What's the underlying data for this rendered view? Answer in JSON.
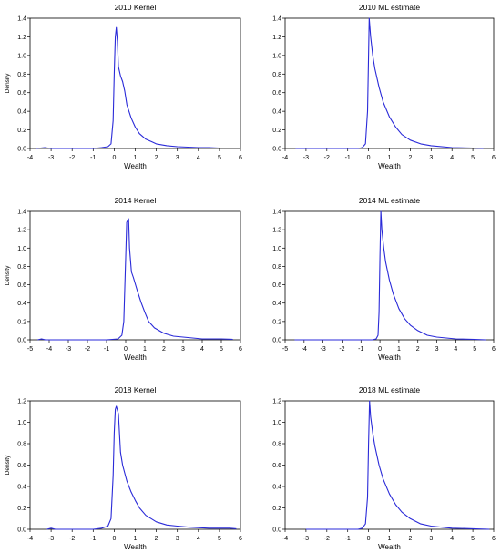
{
  "chart_data": [
    {
      "type": "line",
      "title": "2010 Kernel",
      "xlabel": "Wealth",
      "ylabel": "Density",
      "xlim": [
        -4,
        6
      ],
      "ylim": [
        0,
        1.4
      ],
      "xticks": [
        "-4",
        "-3",
        "-2",
        "-1",
        "0",
        "1",
        "2",
        "3",
        "4",
        "5",
        "6"
      ],
      "yticks": [
        "0.0",
        "0.2",
        "0.4",
        "0.6",
        "0.8",
        "1.0",
        "1.2",
        "1.4"
      ],
      "grid": false,
      "series": [
        {
          "color": "#2a2ad8",
          "x": [
            -3.7,
            -3.3,
            -3.0,
            -2.7,
            -2.0,
            -1.0,
            -0.6,
            -0.3,
            -0.15,
            -0.05,
            0.0,
            0.05,
            0.1,
            0.15,
            0.2,
            0.3,
            0.4,
            0.5,
            0.6,
            0.8,
            1.0,
            1.2,
            1.5,
            1.8,
            2.0,
            2.5,
            3.0,
            3.5,
            4.0,
            4.5,
            5.0,
            5.4
          ],
          "y": [
            0.0,
            0.01,
            0.0,
            0.0,
            0.0,
            0.0,
            0.01,
            0.02,
            0.05,
            0.3,
            0.8,
            1.2,
            1.3,
            1.15,
            0.88,
            0.78,
            0.72,
            0.62,
            0.47,
            0.33,
            0.23,
            0.16,
            0.1,
            0.07,
            0.05,
            0.03,
            0.02,
            0.015,
            0.01,
            0.01,
            0.005,
            0.005
          ]
        }
      ]
    },
    {
      "type": "line",
      "title": "2010 ML estimate",
      "xlabel": "Wealth",
      "ylabel": "",
      "xlim": [
        -4,
        6
      ],
      "ylim": [
        0,
        1.4
      ],
      "xticks": [
        "-4",
        "-3",
        "-2",
        "-1",
        "0",
        "1",
        "2",
        "3",
        "4",
        "5",
        "6"
      ],
      "yticks": [
        "0.0",
        "0.2",
        "0.4",
        "0.6",
        "0.8",
        "1.0",
        "1.2",
        "1.4"
      ],
      "grid": false,
      "series": [
        {
          "color": "#2a2ad8",
          "x": [
            -3.5,
            -1.0,
            -0.5,
            -0.3,
            -0.15,
            -0.05,
            0.0,
            0.03,
            0.1,
            0.2,
            0.3,
            0.5,
            0.7,
            1.0,
            1.3,
            1.6,
            2.0,
            2.5,
            3.0,
            4.0,
            5.0,
            5.5
          ],
          "y": [
            0.0,
            0.0,
            0.0,
            0.01,
            0.05,
            0.4,
            1.0,
            1.4,
            1.2,
            1.0,
            0.86,
            0.66,
            0.5,
            0.34,
            0.23,
            0.15,
            0.09,
            0.05,
            0.03,
            0.01,
            0.005,
            0.0
          ]
        }
      ]
    },
    {
      "type": "line",
      "title": "2014 Kernel",
      "xlabel": "Wealth",
      "ylabel": "Density",
      "xlim": [
        -5,
        6
      ],
      "ylim": [
        0,
        1.4
      ],
      "xticks": [
        "-5",
        "-4",
        "-3",
        "-2",
        "-1",
        "0",
        "1",
        "2",
        "3",
        "4",
        "5",
        "6"
      ],
      "yticks": [
        "0.0",
        "0.2",
        "0.4",
        "0.6",
        "0.8",
        "1.0",
        "1.2",
        "1.4"
      ],
      "grid": false,
      "series": [
        {
          "color": "#2a2ad8",
          "x": [
            -4.6,
            -4.4,
            -4.2,
            -3.5,
            -2.0,
            -1.0,
            -0.4,
            -0.2,
            -0.1,
            0.0,
            0.05,
            0.1,
            0.15,
            0.2,
            0.3,
            0.4,
            0.6,
            0.8,
            1.0,
            1.2,
            1.5,
            2.0,
            2.5,
            3.0,
            3.5,
            4.0,
            5.0,
            5.6
          ],
          "y": [
            0.0,
            0.01,
            0.0,
            0.0,
            0.0,
            0.0,
            0.01,
            0.05,
            0.2,
            0.9,
            1.28,
            1.3,
            1.32,
            1.0,
            0.74,
            0.68,
            0.54,
            0.41,
            0.3,
            0.2,
            0.13,
            0.07,
            0.04,
            0.03,
            0.02,
            0.01,
            0.01,
            0.005
          ]
        }
      ]
    },
    {
      "type": "line",
      "title": "2014 ML estimate",
      "xlabel": "Wealth",
      "ylabel": "",
      "xlim": [
        -5,
        6
      ],
      "ylim": [
        0,
        1.4
      ],
      "xticks": [
        "-5",
        "-4",
        "-3",
        "-2",
        "-1",
        "0",
        "1",
        "2",
        "3",
        "4",
        "5",
        "6"
      ],
      "yticks": [
        "0.0",
        "0.2",
        "0.4",
        "0.6",
        "0.8",
        "1.0",
        "1.2",
        "1.4"
      ],
      "grid": false,
      "series": [
        {
          "color": "#2a2ad8",
          "x": [
            -4.5,
            -1.0,
            -0.4,
            -0.2,
            -0.1,
            -0.05,
            0.0,
            0.05,
            0.1,
            0.2,
            0.3,
            0.5,
            0.7,
            1.0,
            1.3,
            1.6,
            2.0,
            2.5,
            3.0,
            4.0,
            5.0,
            5.6
          ],
          "y": [
            0.0,
            0.0,
            0.0,
            0.01,
            0.05,
            0.3,
            0.9,
            1.4,
            1.2,
            1.0,
            0.85,
            0.65,
            0.5,
            0.34,
            0.23,
            0.16,
            0.1,
            0.05,
            0.03,
            0.01,
            0.005,
            0.0
          ]
        }
      ]
    },
    {
      "type": "line",
      "title": "2018 Kernel",
      "xlabel": "Wealth",
      "ylabel": "Density",
      "xlim": [
        -4,
        6
      ],
      "ylim": [
        0,
        1.2
      ],
      "xticks": [
        "-4",
        "-3",
        "-2",
        "-1",
        "0",
        "1",
        "2",
        "3",
        "4",
        "5",
        "6"
      ],
      "yticks": [
        "0.0",
        "0.2",
        "0.4",
        "0.6",
        "0.8",
        "1.0",
        "1.2"
      ],
      "grid": false,
      "series": [
        {
          "color": "#2a2ad8",
          "x": [
            -3.2,
            -3.0,
            -2.8,
            -2.0,
            -1.0,
            -0.6,
            -0.3,
            -0.15,
            -0.05,
            0.0,
            0.05,
            0.1,
            0.2,
            0.3,
            0.4,
            0.6,
            0.8,
            1.0,
            1.2,
            1.5,
            2.0,
            2.5,
            3.0,
            3.5,
            4.0,
            4.5,
            5.0,
            5.5,
            5.8
          ],
          "y": [
            0.0,
            0.01,
            0.0,
            0.0,
            0.0,
            0.01,
            0.03,
            0.1,
            0.5,
            0.9,
            1.12,
            1.15,
            1.08,
            0.72,
            0.6,
            0.45,
            0.35,
            0.27,
            0.2,
            0.13,
            0.07,
            0.04,
            0.03,
            0.02,
            0.015,
            0.01,
            0.01,
            0.01,
            0.005
          ]
        }
      ]
    },
    {
      "type": "line",
      "title": "2018 ML estimate",
      "xlabel": "Wealth",
      "ylabel": "",
      "xlim": [
        -4,
        6
      ],
      "ylim": [
        0,
        1.2
      ],
      "xticks": [
        "-4",
        "-3",
        "-2",
        "-1",
        "0",
        "1",
        "2",
        "3",
        "4",
        "5",
        "6"
      ],
      "yticks": [
        "0.0",
        "0.2",
        "0.4",
        "0.6",
        "0.8",
        "1.0",
        "1.2"
      ],
      "grid": false,
      "series": [
        {
          "color": "#2a2ad8",
          "x": [
            -3.0,
            -1.0,
            -0.5,
            -0.3,
            -0.15,
            -0.05,
            0.0,
            0.05,
            0.1,
            0.2,
            0.3,
            0.5,
            0.7,
            1.0,
            1.3,
            1.6,
            2.0,
            2.5,
            3.0,
            4.0,
            5.0,
            5.8
          ],
          "y": [
            0.0,
            0.0,
            0.0,
            0.01,
            0.05,
            0.3,
            0.8,
            1.2,
            1.05,
            0.9,
            0.78,
            0.6,
            0.47,
            0.33,
            0.23,
            0.16,
            0.1,
            0.05,
            0.03,
            0.01,
            0.005,
            0.0
          ]
        }
      ]
    }
  ]
}
